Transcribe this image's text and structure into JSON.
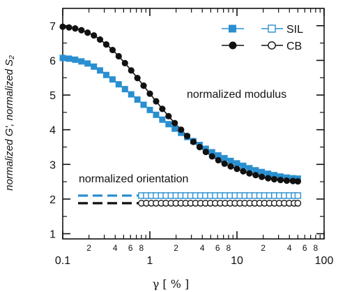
{
  "chart_data": {
    "type": "scatter",
    "xlabel": "γ [ % ]",
    "ylabel": "normalized G', normalized S₂",
    "x_scale": "log",
    "xlim": [
      0.1,
      100
    ],
    "ylim": [
      0.85,
      7.5
    ],
    "x_major_ticks": [
      {
        "value": 0.1,
        "label": "0.1"
      },
      {
        "value": 1,
        "label": "1"
      },
      {
        "value": 10,
        "label": "10"
      },
      {
        "value": 100,
        "label": "100"
      }
    ],
    "x_minor_tick_labels": [
      {
        "value": 0.2,
        "label": "2"
      },
      {
        "value": 0.4,
        "label": "4"
      },
      {
        "value": 0.6,
        "label": "6"
      },
      {
        "value": 0.8,
        "label": "8"
      },
      {
        "value": 2,
        "label": "2"
      },
      {
        "value": 4,
        "label": "4"
      },
      {
        "value": 6,
        "label": "6"
      },
      {
        "value": 8,
        "label": "8"
      },
      {
        "value": 20,
        "label": "2"
      },
      {
        "value": 40,
        "label": "4"
      },
      {
        "value": 60,
        "label": "6"
      },
      {
        "value": 80,
        "label": "8"
      }
    ],
    "y_ticks": [
      1,
      2,
      3,
      4,
      5,
      6,
      7
    ],
    "grid": false,
    "legend": {
      "placement": "top-right",
      "entries": [
        {
          "name": "SIL",
          "filled_marker": "square",
          "open_marker": "square",
          "color": "#2a8fd0"
        },
        {
          "name": "CB",
          "filled_marker": "circle",
          "open_marker": "circle",
          "color": "#111111"
        }
      ]
    },
    "annotations": [
      "normalized modulus",
      "normalized orientation"
    ],
    "series": [
      {
        "name": "SIL",
        "kind": "normalized modulus",
        "marker": "square-filled",
        "color": "#2a8fd0",
        "x": [
          0.1,
          0.118,
          0.139,
          0.164,
          0.193,
          0.228,
          0.268,
          0.316,
          0.373,
          0.439,
          0.518,
          0.611,
          0.72,
          0.848,
          1.0,
          1.18,
          1.39,
          1.64,
          1.93,
          2.28,
          2.68,
          3.16,
          3.73,
          4.39,
          5.18,
          6.11,
          7.2,
          8.48,
          10.0,
          11.8,
          13.9,
          16.4,
          19.3,
          22.8,
          26.8,
          31.6,
          37.3,
          43.9,
          50.0
        ],
        "y": [
          6.07,
          6.05,
          6.02,
          5.97,
          5.91,
          5.82,
          5.71,
          5.58,
          5.45,
          5.31,
          5.17,
          5.02,
          4.87,
          4.72,
          4.57,
          4.43,
          4.29,
          4.16,
          4.03,
          3.91,
          3.79,
          3.67,
          3.56,
          3.45,
          3.35,
          3.26,
          3.18,
          3.1,
          3.03,
          2.96,
          2.89,
          2.83,
          2.78,
          2.73,
          2.69,
          2.65,
          2.62,
          2.6,
          2.59
        ]
      },
      {
        "name": "CB",
        "kind": "normalized modulus",
        "marker": "circle-filled",
        "color": "#111111",
        "x": [
          0.1,
          0.118,
          0.139,
          0.164,
          0.193,
          0.228,
          0.268,
          0.316,
          0.373,
          0.439,
          0.518,
          0.611,
          0.72,
          0.848,
          1.0,
          1.18,
          1.39,
          1.64,
          1.93,
          2.28,
          2.68,
          3.16,
          3.73,
          4.39,
          5.18,
          6.11,
          7.2,
          8.48,
          10.0,
          11.8,
          13.9,
          16.4,
          19.3,
          22.8,
          26.8,
          31.6,
          37.3,
          43.9,
          50.0
        ],
        "y": [
          6.97,
          6.95,
          6.92,
          6.87,
          6.8,
          6.72,
          6.6,
          6.46,
          6.3,
          6.12,
          5.92,
          5.71,
          5.49,
          5.27,
          5.04,
          4.82,
          4.6,
          4.39,
          4.19,
          4.0,
          3.82,
          3.65,
          3.5,
          3.36,
          3.23,
          3.12,
          3.02,
          2.94,
          2.87,
          2.8,
          2.74,
          2.69,
          2.64,
          2.6,
          2.57,
          2.55,
          2.53,
          2.52,
          2.51
        ]
      },
      {
        "name": "SIL",
        "kind": "normalized orientation",
        "marker": "square-open",
        "color": "#2a8fd0",
        "dashed_from": 0.15,
        "dashed_to": 0.75,
        "x": [
          0.8,
          0.911,
          1.04,
          1.18,
          1.35,
          1.53,
          1.75,
          1.99,
          2.27,
          2.58,
          2.94,
          3.35,
          3.82,
          4.35,
          4.95,
          5.64,
          6.43,
          7.32,
          8.34,
          9.5,
          10.8,
          12.3,
          14.0,
          16.0,
          18.2,
          20.7,
          23.6,
          26.9,
          30.6,
          34.9,
          39.8,
          45.3,
          50.0
        ],
        "y": [
          2.1,
          2.1,
          2.1,
          2.1,
          2.1,
          2.1,
          2.1,
          2.1,
          2.1,
          2.1,
          2.1,
          2.1,
          2.1,
          2.1,
          2.1,
          2.1,
          2.1,
          2.1,
          2.1,
          2.1,
          2.1,
          2.1,
          2.1,
          2.1,
          2.1,
          2.1,
          2.1,
          2.1,
          2.1,
          2.1,
          2.1,
          2.1,
          2.1
        ]
      },
      {
        "name": "CB",
        "kind": "normalized orientation",
        "marker": "circle-open",
        "color": "#111111",
        "dashed_from": 0.15,
        "dashed_to": 0.75,
        "x": [
          0.8,
          0.911,
          1.04,
          1.18,
          1.35,
          1.53,
          1.75,
          1.99,
          2.27,
          2.58,
          2.94,
          3.35,
          3.82,
          4.35,
          4.95,
          5.64,
          6.43,
          7.32,
          8.34,
          9.5,
          10.8,
          12.3,
          14.0,
          16.0,
          18.2,
          20.7,
          23.6,
          26.9,
          30.6,
          34.9,
          39.8,
          45.3,
          50.0
        ],
        "y": [
          1.88,
          1.88,
          1.88,
          1.88,
          1.88,
          1.88,
          1.88,
          1.88,
          1.88,
          1.88,
          1.88,
          1.88,
          1.88,
          1.88,
          1.88,
          1.88,
          1.88,
          1.88,
          1.88,
          1.88,
          1.88,
          1.88,
          1.88,
          1.88,
          1.88,
          1.88,
          1.88,
          1.88,
          1.88,
          1.88,
          1.88,
          1.88,
          1.88
        ]
      }
    ]
  }
}
